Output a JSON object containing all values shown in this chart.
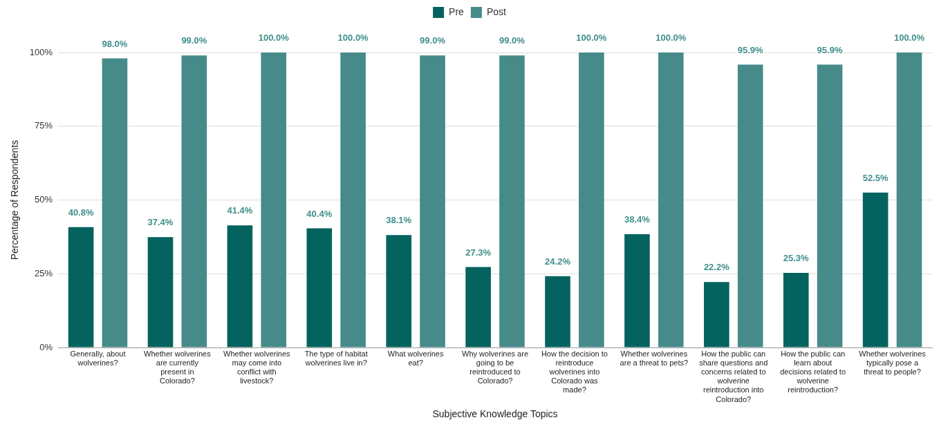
{
  "chart_data": {
    "type": "bar",
    "xlabel": "Subjective Knowledge Topics",
    "ylabel": "Percentage of Respondents",
    "categories": [
      "Generally, about wolverines?",
      "Whether wolverines are currently present in Colorado?",
      "Whether wolverines may come into conflict with livestock?",
      "The type of habitat wolverines live in?",
      "What wolverines eat?",
      "Why wolverines are going to be reintroduced to Colorado?",
      "How the decision to reintroduce wolverines into Colorado was made?",
      "Whether wolverines are a threat to pets?",
      "How the public can share questions and concerns related to wolverine reintroduction into Colorado?",
      "How the public can learn about decisions related to wolverine reintroduction?",
      "Whether wolverines typically pose a threat to people?"
    ],
    "series": [
      {
        "name": "Pre",
        "color": "#05635f",
        "values": [
          40.8,
          37.4,
          41.4,
          40.4,
          38.1,
          27.3,
          24.2,
          38.4,
          22.2,
          25.3,
          52.5
        ],
        "value_labels": [
          "40.8%",
          "37.4%",
          "41.4%",
          "40.4%",
          "38.1%",
          "27.3%",
          "24.2%",
          "38.4%",
          "22.2%",
          "25.3%",
          "52.5%"
        ]
      },
      {
        "name": "Post",
        "color": "#468b89",
        "values": [
          98.0,
          99.0,
          100.0,
          100.0,
          99.0,
          99.0,
          100.0,
          100.0,
          95.9,
          95.9,
          100.0
        ],
        "value_labels": [
          "98.0%",
          "99.0%",
          "100.0%",
          "100.0%",
          "99.0%",
          "99.0%",
          "100.0%",
          "100.0%",
          "95.9%",
          "95.9%",
          "100.0%"
        ]
      }
    ],
    "ylim": [
      0,
      100
    ],
    "yticks": [
      {
        "value": 0,
        "label": "0%"
      },
      {
        "value": 25,
        "label": "25%"
      },
      {
        "value": 50,
        "label": "50%"
      },
      {
        "value": 75,
        "label": "75%"
      },
      {
        "value": 100,
        "label": "100%"
      }
    ],
    "grid": "y",
    "legend": "top"
  }
}
